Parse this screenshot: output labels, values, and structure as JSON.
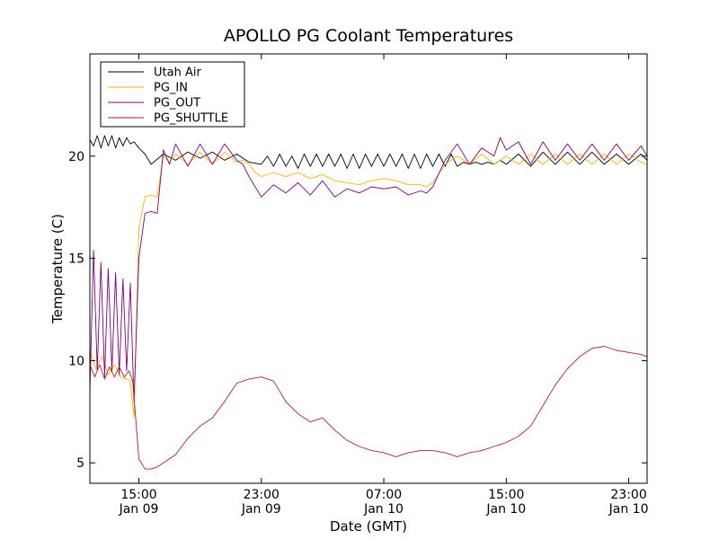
{
  "chart_data": {
    "type": "line",
    "title": "APOLLO PG Coolant Temperatures",
    "xlabel": "Date (GMT)",
    "ylabel": "Temperature (C)",
    "x_unit": "hours since Jan 09 10:00 GMT",
    "xlim": [
      0,
      45.5
    ],
    "ylim": [
      4,
      25
    ],
    "x_ticks": [
      {
        "x": 4,
        "time": "15:00",
        "date": "Jan 09"
      },
      {
        "x": 14,
        "time": "23:00",
        "date": "Jan 09"
      },
      {
        "x": 24,
        "time": "07:00",
        "date": "Jan 10"
      },
      {
        "x": 34,
        "time": "15:00",
        "date": "Jan 10"
      },
      {
        "x": 44,
        "time": "23:00",
        "date": "Jan 10"
      }
    ],
    "y_ticks": [
      5,
      10,
      15,
      20
    ],
    "legend_position": "top-left",
    "series": [
      {
        "name": "Utah Air",
        "color": "#000000",
        "x": [
          0,
          0.3,
          0.6,
          0.9,
          1.2,
          1.5,
          1.8,
          2.1,
          2.4,
          2.7,
          3.0,
          3.3,
          3.6,
          4.0,
          4.5,
          5.0,
          6,
          7,
          8,
          9,
          10,
          11,
          12,
          13,
          14,
          14.5,
          15,
          15.5,
          16,
          16.5,
          17,
          17.5,
          18,
          18.5,
          19,
          19.5,
          20,
          20.5,
          21,
          21.5,
          22,
          22.5,
          23,
          23.5,
          24,
          24.5,
          25,
          25.5,
          26,
          26.5,
          27,
          27.5,
          28,
          28.5,
          29,
          29.5,
          30,
          30.5,
          31,
          31.5,
          32,
          32.5,
          33,
          33.5,
          34,
          35,
          36,
          37,
          38,
          39,
          40,
          41,
          42,
          43,
          44,
          45,
          45.5
        ],
        "values": [
          20.8,
          20.5,
          21.0,
          20.4,
          21.0,
          20.5,
          21.0,
          20.4,
          20.9,
          20.5,
          20.9,
          20.6,
          20.7,
          20.4,
          20.1,
          19.6,
          20.1,
          19.8,
          20.2,
          19.9,
          20.2,
          19.8,
          20.1,
          19.7,
          19.6,
          20.0,
          19.5,
          20.1,
          19.5,
          20.0,
          19.4,
          20.1,
          19.5,
          20.1,
          19.5,
          20.1,
          19.5,
          20.1,
          19.4,
          20.1,
          19.4,
          20.1,
          19.5,
          20.1,
          19.5,
          20.1,
          19.5,
          20.1,
          19.4,
          20.1,
          19.4,
          20.1,
          19.5,
          20.1,
          19.5,
          20.1,
          19.5,
          19.7,
          19.6,
          19.7,
          19.6,
          19.7,
          19.6,
          19.8,
          19.6,
          20.1,
          19.5,
          20.2,
          19.6,
          20.2,
          19.6,
          20.2,
          19.6,
          20.1,
          19.6,
          20.1,
          19.8
        ]
      },
      {
        "name": "PG_IN",
        "color": "#ffb300",
        "x": [
          0,
          0.5,
          1.0,
          1.5,
          2.0,
          2.5,
          3.0,
          3.3,
          3.6,
          4.0,
          4.5,
          5.0,
          5.5,
          6.0,
          6.5,
          7,
          8,
          9,
          10,
          11,
          12,
          12.5,
          13,
          13.5,
          14,
          15,
          16,
          17,
          18,
          19,
          20,
          21,
          22,
          23,
          24,
          25,
          26,
          27,
          27.5,
          28,
          29,
          30,
          31,
          32,
          33,
          34,
          35,
          36,
          37,
          38,
          39,
          40,
          41,
          42,
          43,
          44,
          45,
          45.5
        ],
        "values": [
          10.5,
          9.6,
          10.2,
          9.3,
          9.8,
          9.2,
          9.1,
          9.0,
          7.2,
          16.5,
          18.0,
          18.1,
          18.0,
          20.0,
          19.7,
          20.1,
          19.6,
          20.2,
          19.6,
          20.2,
          19.7,
          19.8,
          19.6,
          19.2,
          19.0,
          19.2,
          19.0,
          19.2,
          18.9,
          19.1,
          18.8,
          18.7,
          18.6,
          18.8,
          18.9,
          18.8,
          18.6,
          18.6,
          18.5,
          18.7,
          19.6,
          20.0,
          19.6,
          20.1,
          19.6,
          20.0,
          19.6,
          20.1,
          19.6,
          20.1,
          19.6,
          20.1,
          19.6,
          20.1,
          19.6,
          20.1,
          19.7,
          19.6
        ]
      },
      {
        "name": "PG_OUT",
        "color": "#800080",
        "x": [
          0,
          0.3,
          0.6,
          0.9,
          1.2,
          1.5,
          1.8,
          2.1,
          2.4,
          2.7,
          3.0,
          3.3,
          3.6,
          4.0,
          4.5,
          5.0,
          5.5,
          6.0,
          6.5,
          7,
          8,
          9,
          10,
          11,
          12,
          12.5,
          13,
          13.5,
          14,
          15,
          16,
          17,
          18,
          19,
          20,
          21,
          22,
          23,
          24,
          25,
          26,
          27,
          27.5,
          28,
          29,
          30,
          31,
          32,
          33,
          33.5,
          34,
          35,
          36,
          37,
          38,
          39,
          40,
          41,
          42,
          43,
          44,
          45,
          45.5
        ],
        "values": [
          8.5,
          15.4,
          9.5,
          14.8,
          9.2,
          14.5,
          9.5,
          14.3,
          9.3,
          14.0,
          9.5,
          13.8,
          8.0,
          15.0,
          17.2,
          17.3,
          17.2,
          20.3,
          19.6,
          20.6,
          19.5,
          20.6,
          19.6,
          20.6,
          19.8,
          19.6,
          19.0,
          18.5,
          18.0,
          18.6,
          18.2,
          18.7,
          18.1,
          18.8,
          18.0,
          18.4,
          18.2,
          18.5,
          18.4,
          18.5,
          18.1,
          18.3,
          18.2,
          18.5,
          19.8,
          20.6,
          19.6,
          20.4,
          20.0,
          20.9,
          20.3,
          20.7,
          19.6,
          20.7,
          19.8,
          20.6,
          19.8,
          20.6,
          19.8,
          20.6,
          19.8,
          20.5,
          20.0
        ]
      },
      {
        "name": "PG_SHUTTLE",
        "color": "#b22222",
        "x": [
          0,
          0.4,
          0.8,
          1.2,
          1.6,
          2.0,
          2.4,
          2.8,
          3.2,
          3.5,
          3.7,
          4.0,
          4.5,
          5.0,
          5.5,
          6,
          7,
          8,
          9,
          10,
          11,
          12,
          13,
          13.5,
          14,
          15,
          16,
          17,
          18,
          19,
          20,
          21,
          22,
          23,
          24,
          25,
          26,
          27,
          28,
          29,
          30,
          31,
          32,
          33,
          33.5,
          34,
          35,
          36,
          37,
          38,
          39,
          40,
          41,
          42,
          43,
          44,
          45,
          45.5
        ],
        "values": [
          9.8,
          9.2,
          9.8,
          9.1,
          9.7,
          9.2,
          9.7,
          9.2,
          9.5,
          9.0,
          7.5,
          5.2,
          4.7,
          4.7,
          4.8,
          5.0,
          5.4,
          6.2,
          6.8,
          7.2,
          8.0,
          8.9,
          9.1,
          9.15,
          9.2,
          9.0,
          8.0,
          7.4,
          7.0,
          7.2,
          6.6,
          6.1,
          5.8,
          5.6,
          5.5,
          5.3,
          5.5,
          5.6,
          5.6,
          5.5,
          5.3,
          5.5,
          5.6,
          5.8,
          5.9,
          6.0,
          6.3,
          6.8,
          7.8,
          8.8,
          9.6,
          10.2,
          10.6,
          10.7,
          10.5,
          10.4,
          10.3,
          10.2
        ]
      }
    ]
  }
}
